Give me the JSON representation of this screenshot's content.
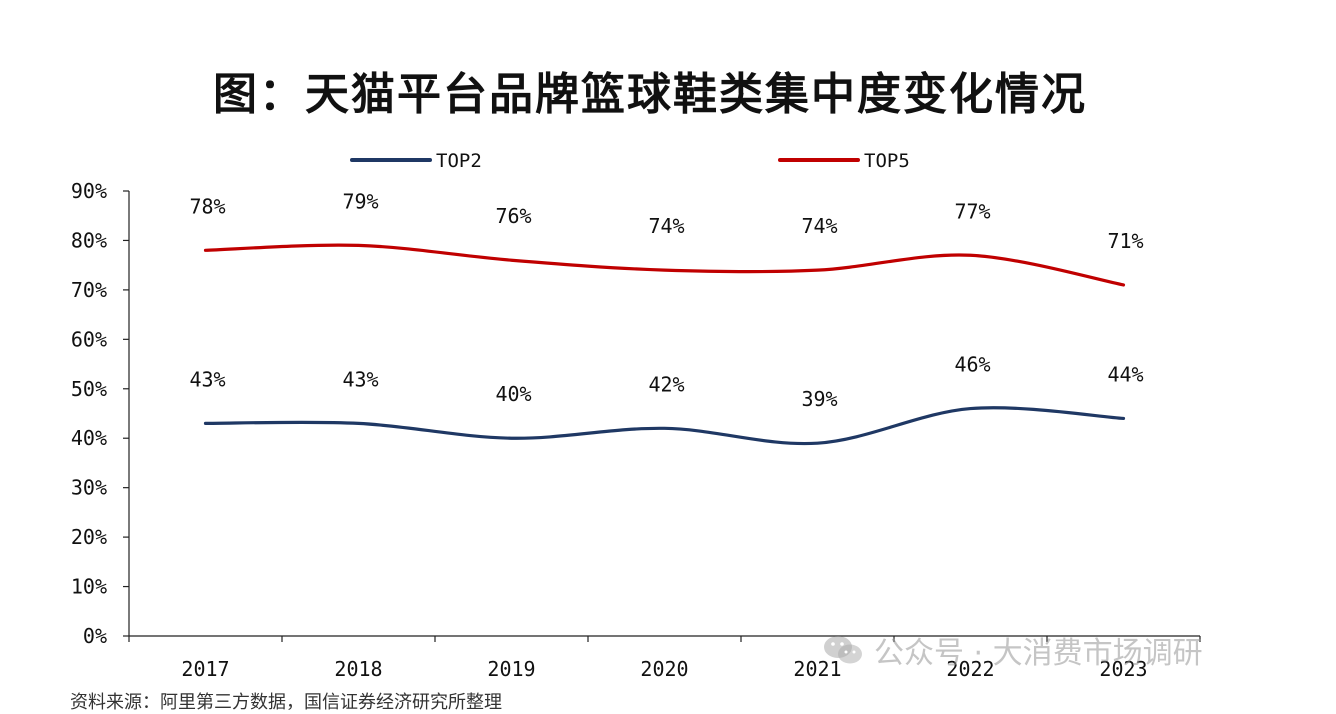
{
  "title": "图：天猫平台品牌篮球鞋类集中度变化情况",
  "source": "资料来源：阿里第三方数据，国信证券经济研究所整理",
  "watermark": "公众号 · 大消费市场调研",
  "chart_data": {
    "type": "line",
    "title": "图：天猫平台品牌篮球鞋类集中度变化情况",
    "categories": [
      "2017",
      "2018",
      "2019",
      "2020",
      "2021",
      "2022",
      "2023"
    ],
    "ylim": [
      0,
      90
    ],
    "yticks": [
      "0%",
      "10%",
      "20%",
      "30%",
      "40%",
      "50%",
      "60%",
      "70%",
      "80%",
      "90%"
    ],
    "legend_position": "top",
    "series": [
      {
        "name": "TOP2",
        "color": "#1f3864",
        "values": [
          43,
          43,
          40,
          42,
          39,
          46,
          44
        ],
        "labels": [
          "43%",
          "43%",
          "40%",
          "42%",
          "39%",
          "46%",
          "44%"
        ]
      },
      {
        "name": "TOP5",
        "color": "#c00000",
        "values": [
          78,
          79,
          76,
          74,
          74,
          77,
          71
        ],
        "labels": [
          "78%",
          "79%",
          "76%",
          "74%",
          "74%",
          "77%",
          "71%"
        ]
      }
    ]
  }
}
